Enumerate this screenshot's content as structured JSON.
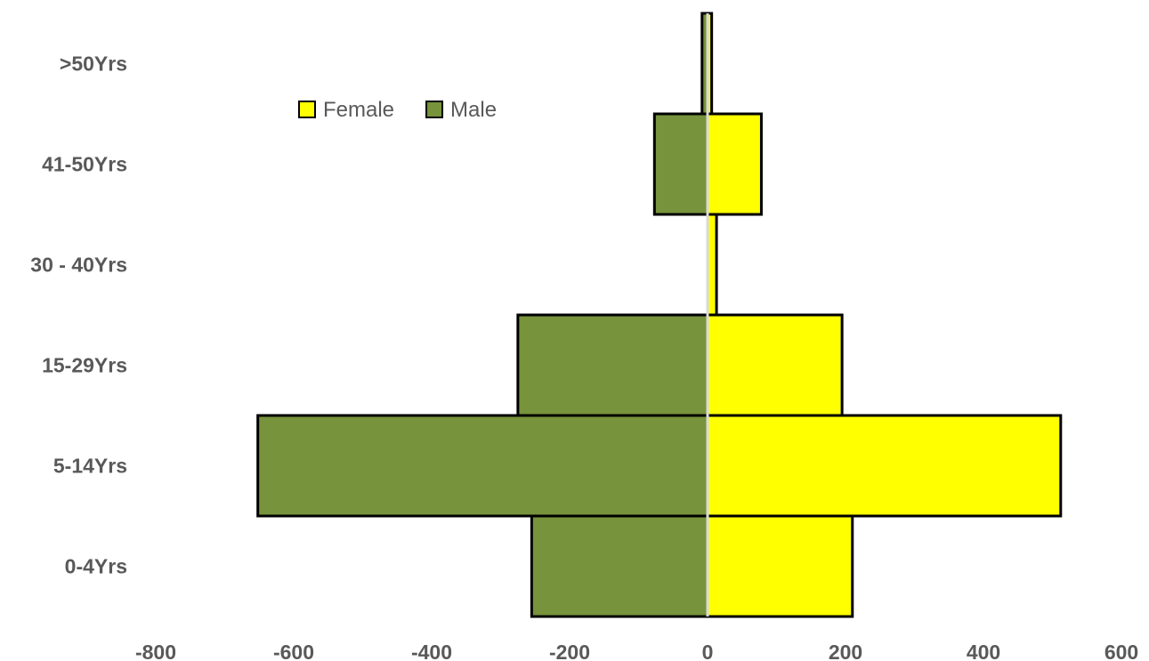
{
  "chart_data": {
    "type": "bar",
    "orientation": "horizontal",
    "stacked": true,
    "categories": [
      "0-4Yrs",
      "5-14Yrs",
      "15-29Yrs",
      "30 - 40Yrs",
      "41-50Yrs",
      ">50Yrs"
    ],
    "series": [
      {
        "name": "Female",
        "color": "#FFFF00",
        "values": [
          210,
          512,
          195,
          13,
          78,
          6
        ]
      },
      {
        "name": "Male",
        "color": "#77933C",
        "values": [
          -255,
          -652,
          -275,
          0,
          -77,
          -8
        ]
      }
    ],
    "xlim": [
      -800,
      600
    ],
    "xticks": [
      -800,
      -600,
      -400,
      -200,
      0,
      200,
      400,
      600
    ],
    "grid": false,
    "legend_position": "top-left"
  }
}
